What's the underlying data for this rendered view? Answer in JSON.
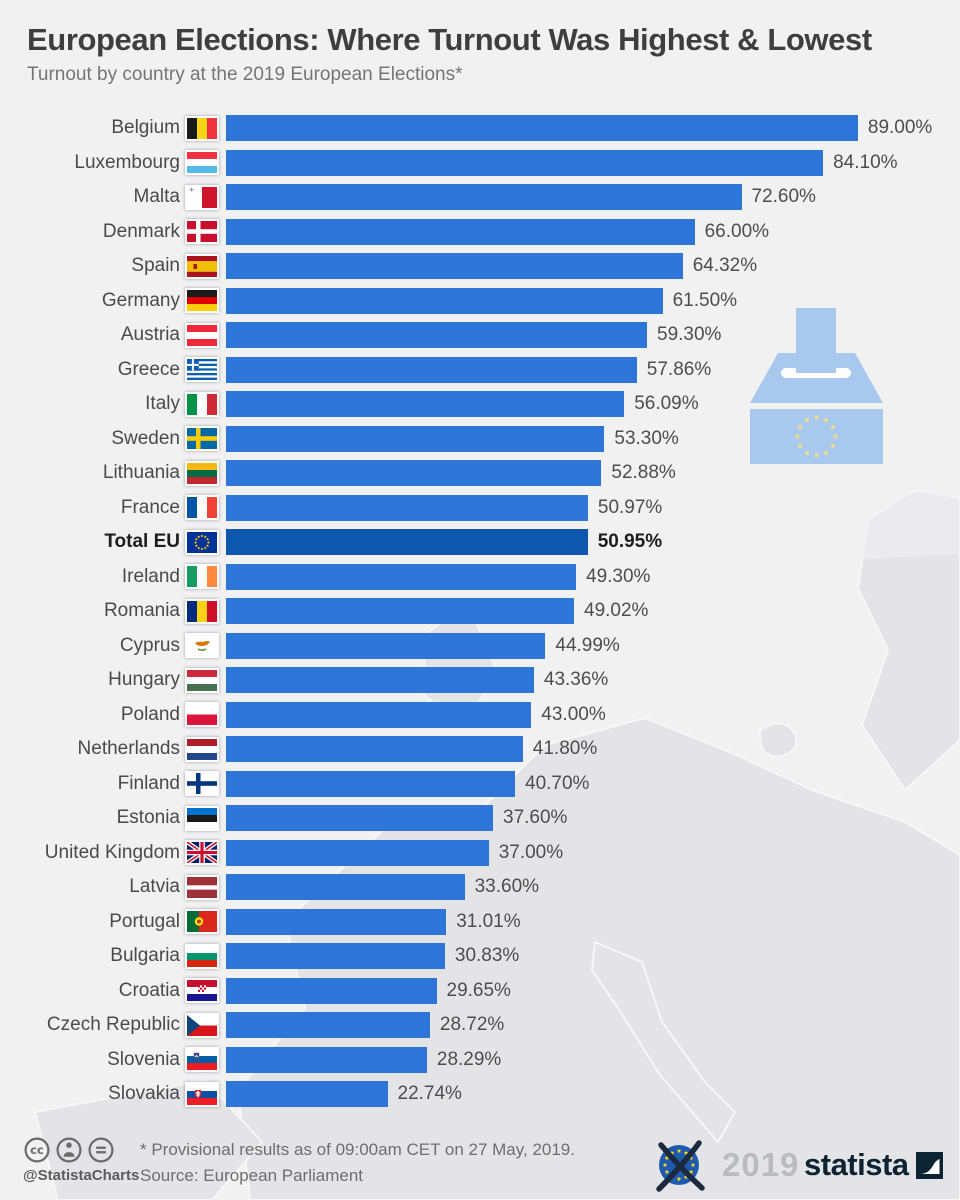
{
  "page": {
    "background": "#f1f1f2"
  },
  "chart_data": {
    "type": "bar",
    "orientation": "horizontal",
    "title": "European Elections: Where Turnout Was Highest & Lowest",
    "subtitle": "Turnout by country at the 2019 European Elections*",
    "unit": "%",
    "xlim": [
      0,
      100
    ],
    "grid": false,
    "legend": false,
    "bar_color": "#2e75da",
    "highlight_bar_color": "#0d57ad",
    "rows": [
      {
        "country": "Belgium",
        "value": 89.0,
        "label": "89.00%",
        "flag": {
          "name": "belgium-flag-icon",
          "kind": "v3",
          "colors": [
            "#1a1a1a",
            "#f9d616",
            "#ef3340"
          ]
        }
      },
      {
        "country": "Luxembourg",
        "value": 84.1,
        "label": "84.10%",
        "flag": {
          "name": "luxembourg-flag-icon",
          "kind": "h3",
          "colors": [
            "#ef3340",
            "#ffffff",
            "#54b9e6"
          ]
        }
      },
      {
        "country": "Malta",
        "value": 72.6,
        "label": "72.60%",
        "flag": {
          "name": "malta-flag-icon",
          "kind": "malta",
          "colors": [
            "#ffffff",
            "#cf142b",
            "#9a9a9a"
          ]
        }
      },
      {
        "country": "Denmark",
        "value": 66.0,
        "label": "66.00%",
        "flag": {
          "name": "denmark-flag-icon",
          "kind": "nordic",
          "colors": [
            "#c8102e",
            "#ffffff"
          ]
        }
      },
      {
        "country": "Spain",
        "value": 64.32,
        "label": "64.32%",
        "flag": {
          "name": "spain-flag-icon",
          "kind": "spain",
          "colors": [
            "#aa151b",
            "#f1bf00"
          ]
        }
      },
      {
        "country": "Germany",
        "value": 61.5,
        "label": "61.50%",
        "flag": {
          "name": "germany-flag-icon",
          "kind": "h3",
          "colors": [
            "#1a1a1a",
            "#dd0000",
            "#ffce00"
          ]
        }
      },
      {
        "country": "Austria",
        "value": 59.3,
        "label": "59.30%",
        "flag": {
          "name": "austria-flag-icon",
          "kind": "h3",
          "colors": [
            "#ed2939",
            "#ffffff",
            "#ed2939"
          ]
        }
      },
      {
        "country": "Greece",
        "value": 57.86,
        "label": "57.86%",
        "flag": {
          "name": "greece-flag-icon",
          "kind": "greece",
          "colors": [
            "#0d5eaf",
            "#ffffff"
          ]
        }
      },
      {
        "country": "Italy",
        "value": 56.09,
        "label": "56.09%",
        "flag": {
          "name": "italy-flag-icon",
          "kind": "v3",
          "colors": [
            "#009246",
            "#ffffff",
            "#ce2b37"
          ]
        }
      },
      {
        "country": "Sweden",
        "value": 53.3,
        "label": "53.30%",
        "flag": {
          "name": "sweden-flag-icon",
          "kind": "nordic",
          "colors": [
            "#006aa7",
            "#fecc00"
          ]
        }
      },
      {
        "country": "Lithuania",
        "value": 52.88,
        "label": "52.88%",
        "flag": {
          "name": "lithuania-flag-icon",
          "kind": "h3",
          "colors": [
            "#fdb913",
            "#006a44",
            "#c1272d"
          ]
        }
      },
      {
        "country": "France",
        "value": 50.97,
        "label": "50.97%",
        "flag": {
          "name": "france-flag-icon",
          "kind": "v3",
          "colors": [
            "#0055a4",
            "#ffffff",
            "#ef4135"
          ]
        }
      },
      {
        "country": "Total EU",
        "value": 50.95,
        "label": "50.95%",
        "highlight": true,
        "flag": {
          "name": "eu-flag-icon",
          "kind": "eu",
          "colors": [
            "#003399",
            "#ffcc00"
          ]
        }
      },
      {
        "country": "Ireland",
        "value": 49.3,
        "label": "49.30%",
        "flag": {
          "name": "ireland-flag-icon",
          "kind": "v3",
          "colors": [
            "#169b62",
            "#ffffff",
            "#ff883e"
          ]
        }
      },
      {
        "country": "Romania",
        "value": 49.02,
        "label": "49.02%",
        "flag": {
          "name": "romania-flag-icon",
          "kind": "v3",
          "colors": [
            "#002b7f",
            "#fcd116",
            "#ce1126"
          ]
        }
      },
      {
        "country": "Cyprus",
        "value": 44.99,
        "label": "44.99%",
        "flag": {
          "name": "cyprus-flag-icon",
          "kind": "cyprus",
          "colors": [
            "#ffffff",
            "#d57800",
            "#4e8b31"
          ]
        }
      },
      {
        "country": "Hungary",
        "value": 43.36,
        "label": "43.36%",
        "flag": {
          "name": "hungary-flag-icon",
          "kind": "h3",
          "colors": [
            "#ce2939",
            "#ffffff",
            "#477050"
          ]
        }
      },
      {
        "country": "Poland",
        "value": 43.0,
        "label": "43.00%",
        "flag": {
          "name": "poland-flag-icon",
          "kind": "h2",
          "colors": [
            "#ffffff",
            "#dc143c"
          ]
        }
      },
      {
        "country": "Netherlands",
        "value": 41.8,
        "label": "41.80%",
        "flag": {
          "name": "netherlands-flag-icon",
          "kind": "h3",
          "colors": [
            "#ae1c28",
            "#ffffff",
            "#21468b"
          ]
        }
      },
      {
        "country": "Finland",
        "value": 40.7,
        "label": "40.70%",
        "flag": {
          "name": "finland-flag-icon",
          "kind": "nordic",
          "colors": [
            "#ffffff",
            "#003580"
          ]
        }
      },
      {
        "country": "Estonia",
        "value": 37.6,
        "label": "37.60%",
        "flag": {
          "name": "estonia-flag-icon",
          "kind": "h3",
          "colors": [
            "#0072ce",
            "#1a1a1a",
            "#ffffff"
          ]
        }
      },
      {
        "country": "United Kingdom",
        "value": 37.0,
        "label": "37.00%",
        "flag": {
          "name": "united-kingdom-flag-icon",
          "kind": "uk",
          "colors": [
            "#012169",
            "#ffffff",
            "#c8102e"
          ]
        }
      },
      {
        "country": "Latvia",
        "value": 33.6,
        "label": "33.60%",
        "flag": {
          "name": "latvia-flag-icon",
          "kind": "h3",
          "weights": [
            2,
            1,
            2
          ],
          "colors": [
            "#9e3039",
            "#ffffff",
            "#9e3039"
          ]
        }
      },
      {
        "country": "Portugal",
        "value": 31.01,
        "label": "31.01%",
        "flag": {
          "name": "portugal-flag-icon",
          "kind": "portugal",
          "colors": [
            "#046a38",
            "#da291c",
            "#ffe900"
          ]
        }
      },
      {
        "country": "Bulgaria",
        "value": 30.83,
        "label": "30.83%",
        "flag": {
          "name": "bulgaria-flag-icon",
          "kind": "h3",
          "colors": [
            "#ffffff",
            "#00966e",
            "#d62612"
          ]
        }
      },
      {
        "country": "Croatia",
        "value": 29.65,
        "label": "29.65%",
        "flag": {
          "name": "croatia-flag-icon",
          "kind": "croatia",
          "colors": [
            "#c8102e",
            "#ffffff",
            "#171796"
          ]
        }
      },
      {
        "country": "Czech Republic",
        "value": 28.72,
        "label": "28.72%",
        "flag": {
          "name": "czech-republic-flag-icon",
          "kind": "czech",
          "colors": [
            "#ffffff",
            "#d7141a",
            "#11457e"
          ]
        }
      },
      {
        "country": "Slovenia",
        "value": 28.29,
        "label": "28.29%",
        "flag": {
          "name": "slovenia-flag-icon",
          "kind": "slovenia",
          "colors": [
            "#ffffff",
            "#005da4",
            "#ed1c24"
          ]
        }
      },
      {
        "country": "Slovakia",
        "value": 22.74,
        "label": "22.74%",
        "flag": {
          "name": "slovakia-flag-icon",
          "kind": "slovakia",
          "colors": [
            "#ffffff",
            "#0b4ea2",
            "#ee1c25"
          ]
        }
      }
    ]
  },
  "illustration": {
    "name": "ballot-box",
    "box_color": "#a9c8ee",
    "slot_color": "#ffffff",
    "star_color": "#f5db85"
  },
  "footer": {
    "handle": "@StatistaCharts",
    "footnote": "* Provisional results as of 09:00am CET on 27 May, 2019.",
    "source": "Source: European Parliament",
    "eu_logo": {
      "disc_color": "#1e5bae",
      "star_color": "#ffd617",
      "cross_color": "#1b2a3e"
    },
    "year": "2019",
    "year_color": "#b9bcbf",
    "brand": "statista",
    "brand_color": "#0c2333",
    "icon_color": "#6a6a6a"
  }
}
